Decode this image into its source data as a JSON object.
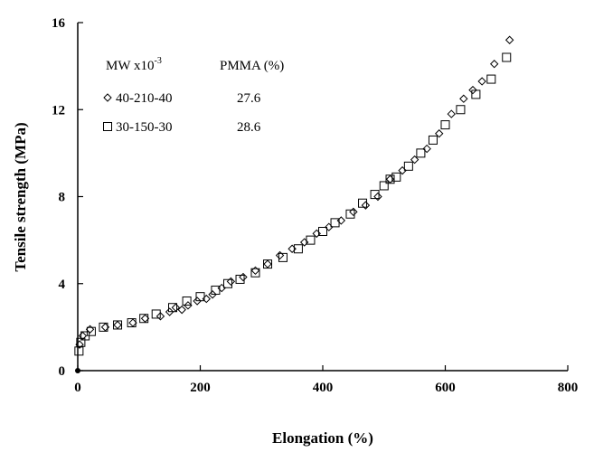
{
  "chart_data": {
    "type": "scatter",
    "title": "",
    "xlabel": "Elongation (%)",
    "ylabel": "Tensile strength (MPa)",
    "xlim": [
      0,
      800
    ],
    "ylim": [
      0,
      16
    ],
    "xticks": [
      "0",
      "200",
      "400",
      "600",
      "800"
    ],
    "yticks": [
      "0",
      "4",
      "8",
      "12",
      "16"
    ],
    "grid": false,
    "legend": {
      "placement": "top-left",
      "header_mw": "MW x10",
      "header_mw_exp": "-3",
      "header_pmma": "PMMA (%)",
      "entries": [
        {
          "label": "40-210-40",
          "value": "27.6",
          "marker": "diamond"
        },
        {
          "label": "30-150-30",
          "value": "28.6",
          "marker": "square"
        }
      ]
    },
    "series": [
      {
        "name": "40-210-40",
        "marker": "diamond",
        "x": [
          0,
          3,
          8,
          20,
          45,
          65,
          90,
          110,
          135,
          150,
          160,
          170,
          180,
          195,
          210,
          220,
          235,
          250,
          270,
          290,
          310,
          330,
          350,
          370,
          390,
          410,
          430,
          450,
          470,
          490,
          510,
          530,
          550,
          570,
          590,
          610,
          630,
          645,
          660,
          680,
          705
        ],
        "y": [
          0,
          1.2,
          1.6,
          1.9,
          2.0,
          2.1,
          2.2,
          2.4,
          2.5,
          2.7,
          2.9,
          2.8,
          3.0,
          3.2,
          3.3,
          3.5,
          3.8,
          4.1,
          4.3,
          4.6,
          4.9,
          5.3,
          5.6,
          5.9,
          6.3,
          6.6,
          6.9,
          7.3,
          7.6,
          8.0,
          8.8,
          9.2,
          9.7,
          10.2,
          10.9,
          11.8,
          12.5,
          12.9,
          13.3,
          14.1,
          15.2
        ]
      },
      {
        "name": "30-150-30",
        "marker": "square",
        "x": [
          2,
          5,
          12,
          22,
          42,
          65,
          88,
          108,
          128,
          155,
          178,
          200,
          225,
          245,
          265,
          290,
          310,
          335,
          360,
          380,
          400,
          420,
          445,
          465,
          485,
          500,
          510,
          520,
          540,
          560,
          580,
          600,
          625,
          650,
          675,
          700
        ],
        "y": [
          0.9,
          1.3,
          1.6,
          1.8,
          2.0,
          2.1,
          2.2,
          2.4,
          2.6,
          2.9,
          3.2,
          3.4,
          3.7,
          4.0,
          4.2,
          4.5,
          4.9,
          5.2,
          5.6,
          6.0,
          6.4,
          6.8,
          7.2,
          7.7,
          8.1,
          8.5,
          8.8,
          8.9,
          9.4,
          10.0,
          10.6,
          11.3,
          12.0,
          12.7,
          13.4,
          14.4
        ]
      }
    ]
  }
}
